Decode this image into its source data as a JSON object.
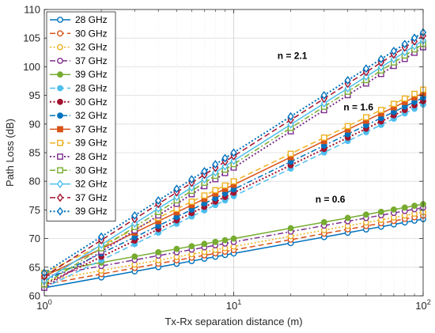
{
  "chart_data": {
    "type": "line",
    "xlabel": "Tx-Rx separation distance (m)",
    "ylabel": "Path Loss (dB)",
    "xscale": "log",
    "xlim": [
      1,
      100
    ],
    "ylim": [
      60,
      110
    ],
    "grid": true,
    "legend_position": "top-left",
    "x_ticks": [
      1,
      10,
      100
    ],
    "x_tick_labels": [
      {
        "base": "10",
        "exp": "0"
      },
      {
        "base": "10",
        "exp": "1"
      },
      {
        "base": "10",
        "exp": "2"
      }
    ],
    "y_ticks": [
      60,
      65,
      70,
      75,
      80,
      85,
      90,
      95,
      100,
      105,
      110
    ],
    "x": [
      1,
      2,
      3,
      4,
      5,
      6,
      7,
      8,
      9,
      10,
      20,
      30,
      40,
      50,
      60,
      70,
      80,
      90,
      100
    ],
    "series": [
      {
        "name": "28 GHz",
        "pl0": 61.4,
        "n": 0.6,
        "color": "#0072BD",
        "dash": "",
        "marker": "circle",
        "width": 1.5
      },
      {
        "name": "30 GHz",
        "pl0": 62.0,
        "n": 0.6,
        "color": "#D95319",
        "dash": "7,4",
        "marker": "circle",
        "width": 1.5
      },
      {
        "name": "32 GHz",
        "pl0": 62.6,
        "n": 0.6,
        "color": "#EDB120",
        "dash": "2,2.5",
        "marker": "circle",
        "width": 1.5
      },
      {
        "name": "37 GHz",
        "pl0": 63.4,
        "n": 0.6,
        "color": "#7E2F8E",
        "dash": "7,3,2,3",
        "marker": "circle",
        "width": 1.5
      },
      {
        "name": "39 GHz",
        "pl0": 64.0,
        "n": 0.6,
        "color": "#77AC30",
        "dash": "",
        "marker": "filled-circle",
        "width": 1.5
      },
      {
        "name": "28 GHz",
        "pl0": 61.4,
        "n": 1.6,
        "color": "#4DBEEE",
        "dash": "7,4",
        "marker": "filled-circle",
        "width": 1.5
      },
      {
        "name": "30 GHz",
        "pl0": 62.0,
        "n": 1.6,
        "color": "#A2142F",
        "dash": "2,2.5",
        "marker": "filled-circle",
        "width": 2
      },
      {
        "name": "32 GHz",
        "pl0": 62.6,
        "n": 1.6,
        "color": "#0072BD",
        "dash": "7,3,2,3",
        "marker": "filled-circle",
        "width": 1.5
      },
      {
        "name": "37 GHz",
        "pl0": 63.4,
        "n": 1.6,
        "color": "#D95319",
        "dash": "",
        "marker": "filled-square",
        "width": 1.5
      },
      {
        "name": "39 GHz",
        "pl0": 64.0,
        "n": 1.6,
        "color": "#EDB120",
        "dash": "7,4",
        "marker": "square",
        "width": 1.5
      },
      {
        "name": "28 GHz",
        "pl0": 61.4,
        "n": 2.1,
        "color": "#7E2F8E",
        "dash": "2,2.5",
        "marker": "square",
        "width": 2
      },
      {
        "name": "30 GHz",
        "pl0": 62.0,
        "n": 2.1,
        "color": "#77AC30",
        "dash": "7,3,2,3",
        "marker": "square",
        "width": 1.5
      },
      {
        "name": "32 GHz",
        "pl0": 62.6,
        "n": 2.1,
        "color": "#4DBEEE",
        "dash": "",
        "marker": "diamond",
        "width": 1.5
      },
      {
        "name": "37 GHz",
        "pl0": 63.4,
        "n": 2.1,
        "color": "#A2142F",
        "dash": "7,4",
        "marker": "diamond",
        "width": 1.5
      },
      {
        "name": "39 GHz",
        "pl0": 64.0,
        "n": 2.1,
        "color": "#0072BD",
        "dash": "2,2.5",
        "marker": "diamond",
        "width": 2
      }
    ],
    "annotations": [
      {
        "text": "n = 2.1",
        "x": 17,
        "y": 101.4
      },
      {
        "text": "n = 1.6",
        "x": 38,
        "y": 92.4
      },
      {
        "text": "n = 0.6",
        "x": 27,
        "y": 76.3
      }
    ]
  }
}
